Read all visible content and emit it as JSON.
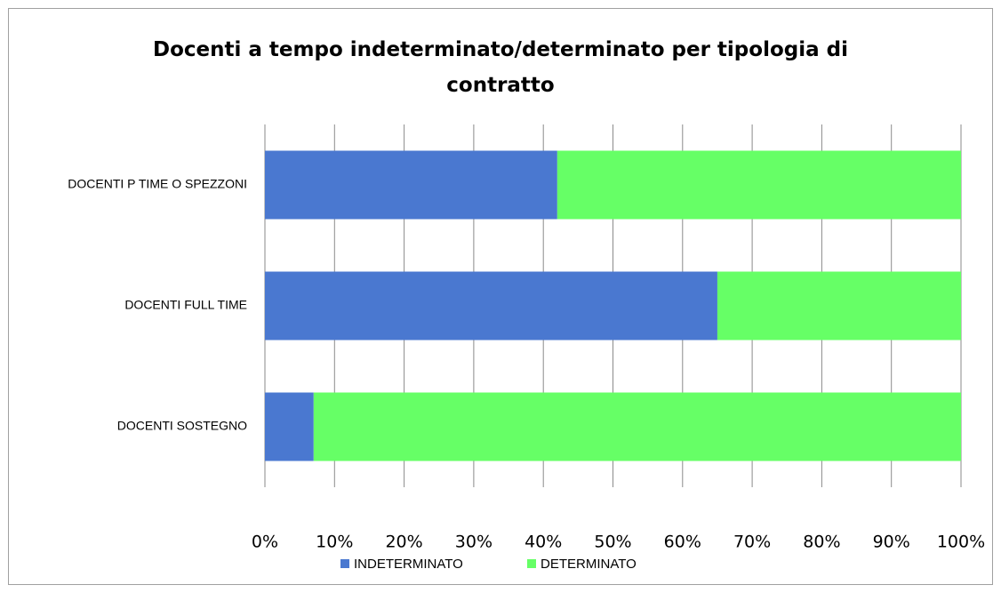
{
  "chart_data": {
    "type": "stacked-bar-horizontal",
    "title": "Docenti a tempo indeterminato/determinato per tipologia di contratto",
    "categories": [
      "DOCENTI P TIME O SPEZZONI",
      "DOCENTI FULL TIME",
      "DOCENTI SOSTEGNO"
    ],
    "series": [
      {
        "name": "INDETERMINATO",
        "color": "#4a78d0",
        "values": [
          42,
          65,
          7
        ]
      },
      {
        "name": "DETERMINATO",
        "color": "#66ff66",
        "values": [
          58,
          35,
          93
        ]
      }
    ],
    "xlim": [
      0,
      100
    ],
    "xticks": [
      {
        "value": 0,
        "label": "0%"
      },
      {
        "value": 10,
        "label": "10%"
      },
      {
        "value": 20,
        "label": "20%"
      },
      {
        "value": 30,
        "label": "30%"
      },
      {
        "value": 40,
        "label": "40%"
      },
      {
        "value": 50,
        "label": "50%"
      },
      {
        "value": 60,
        "label": "60%"
      },
      {
        "value": 70,
        "label": "70%"
      },
      {
        "value": 80,
        "label": "80%"
      },
      {
        "value": 90,
        "label": "90%"
      },
      {
        "value": 100,
        "label": "100%"
      }
    ],
    "grid": true,
    "legend": "bottom"
  }
}
